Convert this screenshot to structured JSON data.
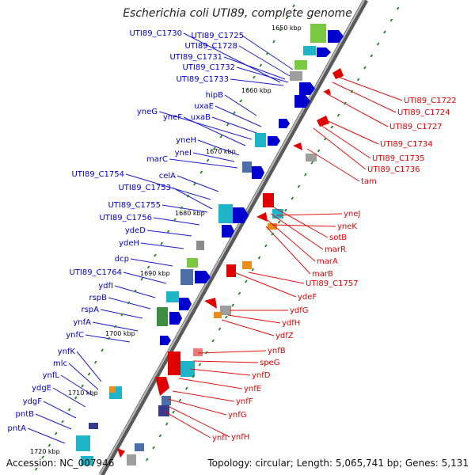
{
  "title": "Escherichia coli UTI89, complete genome",
  "footer": {
    "accession": "Accession: NC_007946",
    "topology": "Topology: circular; Length: 5,065,741 bp; Genes: 5,131"
  },
  "ticks": [
    "1650 kbp",
    "1660 kbp",
    "1670 kbp",
    "1680 kbp",
    "1690 kbp",
    "1700 kbp",
    "1710 kbp",
    "1720 kbp"
  ],
  "left_labels": [
    "UTI89_C1730",
    "UTI89_C1725",
    "UTI89_C1728",
    "UTI89_C1731",
    "UTI89_C1732",
    "UTI89_C1733",
    "hipB",
    "uxaE",
    "yneG",
    "uxaB",
    "yneF",
    "yneH",
    "yneI",
    "marC",
    "celA",
    "UTI89_C1754",
    "UTI89_C1753",
    "UTI89_C1755",
    "UTI89_C1756",
    "ydeD",
    "ydeH",
    "dcp",
    "UTI89_C1764",
    "ydfI",
    "rspB",
    "rspA",
    "ynfA",
    "ynfC",
    "ynfK",
    "mlc",
    "ynfL",
    "ydgE",
    "ydgF",
    "pntB",
    "pntA"
  ],
  "right_labels": [
    "UTI89_C1722",
    "UTI89_C1724",
    "UTI89_C1727",
    "UTI89_C1734",
    "UTI89_C1735",
    "UTI89_C1736",
    "tam",
    "yneJ",
    "yneK",
    "sotB",
    "marR",
    "marA",
    "marB",
    "UTI89_C1757",
    "ydeF",
    "ydfG",
    "ydfH",
    "ydfZ",
    "ynfB",
    "speG",
    "ynfD",
    "ynfE",
    "ynfF",
    "ynfG",
    "ynfI",
    "ynfH"
  ],
  "colors": {
    "forward_gene": "#0000cc",
    "reverse_gene": "#e00000",
    "backbone": "#888888",
    "gc_skew": "#2a8a2a"
  }
}
